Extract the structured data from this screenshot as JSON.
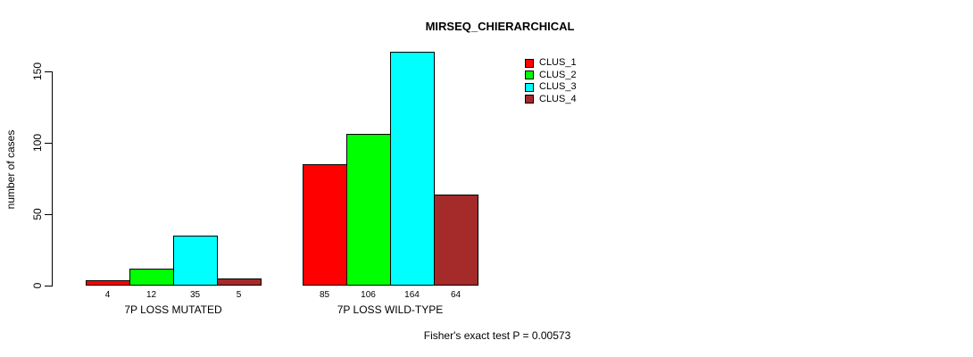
{
  "chart_data": {
    "type": "bar",
    "title": "MIRSEQ_CHIERARCHICAL",
    "ylabel": "number of cases",
    "xlabel": "",
    "ylim": [
      0,
      150
    ],
    "yticks": [
      0,
      50,
      100,
      150
    ],
    "grid": false,
    "legend_position": "top-right",
    "categories": [
      "7P LOSS MUTATED",
      "7P LOSS WILD-TYPE"
    ],
    "groups": [
      {
        "label": "7P LOSS MUTATED",
        "values": [
          4,
          12,
          35,
          5
        ]
      },
      {
        "label": "7P LOSS WILD-TYPE",
        "values": [
          85,
          106,
          164,
          64
        ]
      }
    ],
    "series": [
      {
        "name": "CLUS_1",
        "color": "#FF0000"
      },
      {
        "name": "CLUS_2",
        "color": "#00FF00"
      },
      {
        "name": "CLUS_3",
        "color": "#00FFFF"
      },
      {
        "name": "CLUS_4",
        "color": "#A52A2A"
      }
    ],
    "footnote": "Fisher's exact test P = 0.00573",
    "background_color": "#FFFFFF",
    "axis_color": "#000000"
  }
}
